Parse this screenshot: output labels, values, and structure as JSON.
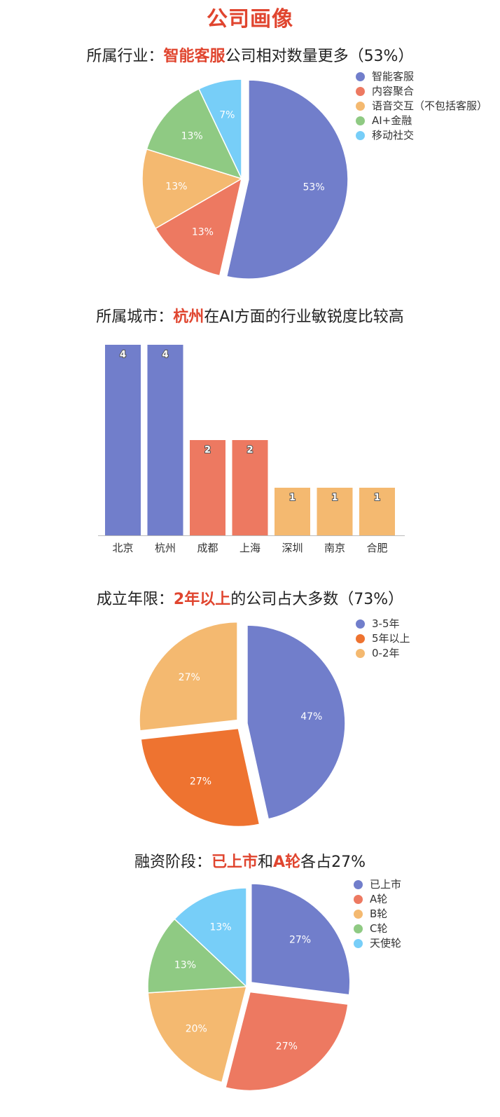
{
  "page_title": "公司画像",
  "chart_data": [
    {
      "type": "pie",
      "title_parts": [
        {
          "text": "所属行业：",
          "hl": false
        },
        {
          "text": "智能客服",
          "hl": true
        },
        {
          "text": "公司相对数量更多（53%）",
          "hl": false
        }
      ],
      "labels": [
        "智能客服",
        "内容聚合",
        "语音交互（不包括客服）",
        "AI+金融",
        "移动社交"
      ],
      "values": [
        53,
        13,
        13,
        13,
        7
      ],
      "value_labels": [
        "53%",
        "13%",
        "13%",
        "13%",
        "7%"
      ],
      "colors": [
        "#717ecb",
        "#ed7961",
        "#f4b970",
        "#8fca83",
        "#77cef8"
      ],
      "exploded": [
        0
      ],
      "legend": "top-right"
    },
    {
      "type": "bar",
      "title_parts": [
        {
          "text": "所属城市：",
          "hl": false
        },
        {
          "text": "杭州",
          "hl": true
        },
        {
          "text": "在AI方面的行业敏锐度比较高",
          "hl": false
        }
      ],
      "categories": [
        "北京",
        "杭州",
        "成都",
        "上海",
        "深圳",
        "南京",
        "合肥"
      ],
      "values": [
        4,
        4,
        2,
        2,
        1,
        1,
        1
      ],
      "value_labels": [
        "4",
        "4",
        "2",
        "2",
        "1",
        "1",
        "1"
      ],
      "colors": [
        "#717ecb",
        "#717ecb",
        "#ed7961",
        "#ed7961",
        "#f4b970",
        "#f4b970",
        "#f4b970"
      ],
      "ylim": [
        0,
        4
      ],
      "grid": false
    },
    {
      "type": "pie",
      "title_parts": [
        {
          "text": "成立年限：",
          "hl": false
        },
        {
          "text": "2年以上",
          "hl": true
        },
        {
          "text": "的公司占大多数（73%）",
          "hl": false
        }
      ],
      "labels": [
        "3-5年",
        "5年以上",
        "0-2年"
      ],
      "values": [
        47,
        27,
        27
      ],
      "value_labels": [
        "47%",
        "27%",
        "27%"
      ],
      "colors": [
        "#717ecb",
        "#ee7330",
        "#f4b970"
      ],
      "exploded": [
        0,
        1,
        2
      ],
      "legend": "top-right"
    },
    {
      "type": "pie",
      "title_parts": [
        {
          "text": "融资阶段：",
          "hl": false
        },
        {
          "text": "已上市",
          "hl": true
        },
        {
          "text": "和",
          "hl": false
        },
        {
          "text": "A轮",
          "hl": true
        },
        {
          "text": "各占27%",
          "hl": false
        }
      ],
      "labels": [
        "已上市",
        "A轮",
        "B轮",
        "C轮",
        "天使轮"
      ],
      "values": [
        27,
        27,
        20,
        13,
        13
      ],
      "value_labels": [
        "27%",
        "27%",
        "20%",
        "13%",
        "13%"
      ],
      "colors": [
        "#717ecb",
        "#ed7961",
        "#f4b970",
        "#8fca83",
        "#77cef8"
      ],
      "exploded": [
        0,
        1
      ],
      "legend": "top-right"
    }
  ]
}
